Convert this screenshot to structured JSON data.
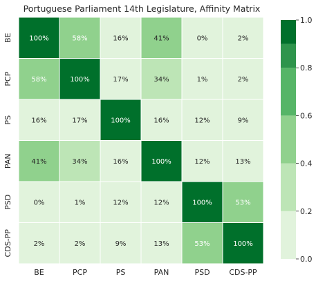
{
  "chart_data": {
    "type": "heatmap",
    "title": "Portuguese Parliament 14th Legislature, Affinity Matrix",
    "xlabel": "",
    "ylabel": "",
    "x_categories": [
      "BE",
      "PCP",
      "PS",
      "PAN",
      "PSD",
      "CDS-PP"
    ],
    "y_categories": [
      "BE",
      "PCP",
      "PS",
      "PAN",
      "PSD",
      "CDS-PP"
    ],
    "values": [
      [
        1.0,
        0.58,
        0.16,
        0.41,
        0.0,
        0.02
      ],
      [
        0.58,
        1.0,
        0.17,
        0.34,
        0.01,
        0.02
      ],
      [
        0.16,
        0.17,
        1.0,
        0.16,
        0.12,
        0.09
      ],
      [
        0.41,
        0.34,
        0.16,
        1.0,
        0.12,
        0.13
      ],
      [
        0.0,
        0.01,
        0.12,
        0.12,
        1.0,
        0.53
      ],
      [
        0.02,
        0.02,
        0.09,
        0.13,
        0.53,
        1.0
      ]
    ],
    "value_format": "percent",
    "colorbar": {
      "range": [
        0.0,
        1.0
      ],
      "ticks": [
        0.0,
        0.2,
        0.4,
        0.6,
        0.8,
        1.0
      ],
      "tick_labels": [
        "0.0",
        "0.2",
        "0.4",
        "0.6",
        "0.8",
        "1.0"
      ],
      "placement": "right",
      "bins": [
        {
          "min": 0.0,
          "max": 0.2,
          "color": "#e1f3dc"
        },
        {
          "min": 0.2,
          "max": 0.4,
          "color": "#bde5b6"
        },
        {
          "min": 0.4,
          "max": 0.6,
          "color": "#90d18d"
        },
        {
          "min": 0.6,
          "max": 0.8,
          "color": "#56b567"
        },
        {
          "min": 0.8,
          "max": 0.9,
          "color": "#2e944c"
        },
        {
          "min": 0.9,
          "max": 1.0,
          "color": "#00702b"
        }
      ]
    },
    "grid": false
  }
}
